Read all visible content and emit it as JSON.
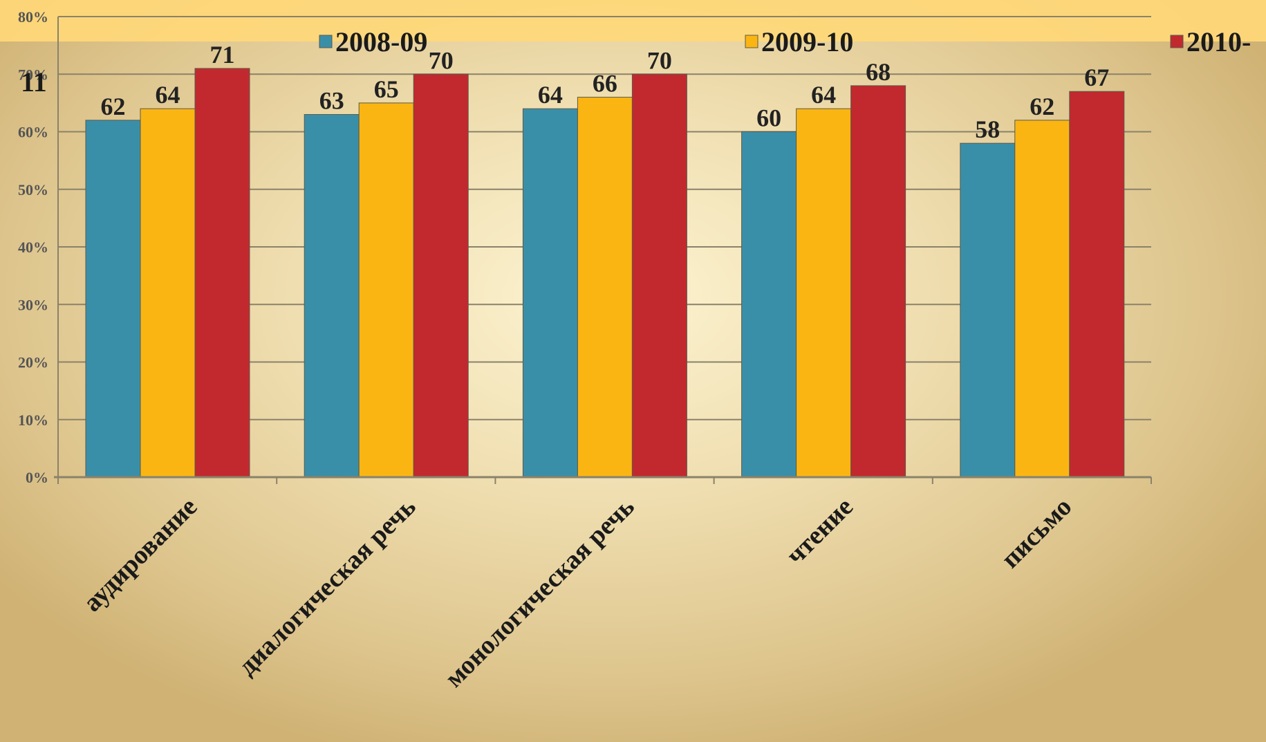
{
  "overlay_text": "11",
  "chart_data": {
    "type": "bar",
    "title": "",
    "xlabel": "",
    "ylabel": "",
    "ylim": [
      0,
      80
    ],
    "y_ticks": [
      "0%",
      "10%",
      "20%",
      "30%",
      "40%",
      "50%",
      "60%",
      "70%",
      "80%"
    ],
    "categories": [
      "аудирование",
      "диалогическая речь",
      "монологическая речь",
      "чтение",
      "письмо"
    ],
    "series": [
      {
        "name": "2008-09",
        "color": "#3a8fa8",
        "values": [
          62,
          63,
          64,
          60,
          58
        ]
      },
      {
        "name": "2009-10",
        "color": "#fbb513",
        "values": [
          64,
          65,
          66,
          64,
          62
        ]
      },
      {
        "name": "2010-",
        "color": "#c2292e",
        "values": [
          71,
          70,
          70,
          68,
          67
        ]
      }
    ],
    "data_labels": [
      [
        "62",
        "63",
        "64",
        "60",
        "58"
      ],
      [
        "64",
        "65",
        "66",
        "64",
        "62"
      ],
      [
        "71",
        "70",
        "70",
        "68",
        "67"
      ]
    ],
    "grid": true,
    "legend_position": "top"
  }
}
